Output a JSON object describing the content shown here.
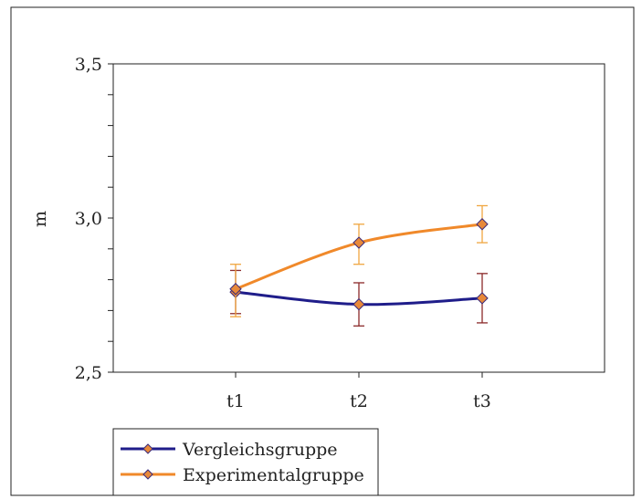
{
  "chart_data": {
    "type": "line",
    "title": "",
    "xlabel": "",
    "ylabel": "m",
    "categories": [
      "t1",
      "t2",
      "t3"
    ],
    "ylim": [
      2.5,
      3.5
    ],
    "y_ticks": [
      "2,5",
      "3,0",
      "3,5"
    ],
    "y_tick_values": [
      2.5,
      3.0,
      3.5
    ],
    "minor_tick_step": 0.1,
    "grid": false,
    "legend_position": "bottom-left",
    "series": [
      {
        "name": "Vergleichsgruppe",
        "values": [
          2.76,
          2.72,
          2.74
        ],
        "error_low": [
          2.69,
          2.65,
          2.66
        ],
        "error_high": [
          2.83,
          2.79,
          2.82
        ],
        "line_color": "#1f1d8a",
        "marker_color": "#e8893a",
        "error_color": "#8b2a2a"
      },
      {
        "name": "Experimentalgruppe",
        "values": [
          2.77,
          2.92,
          2.98
        ],
        "error_low": [
          2.68,
          2.85,
          2.92
        ],
        "error_high": [
          2.85,
          2.98,
          3.04
        ],
        "line_color": "#f0892a",
        "marker_color": "#e8893a",
        "error_color": "#f0a640"
      }
    ]
  }
}
